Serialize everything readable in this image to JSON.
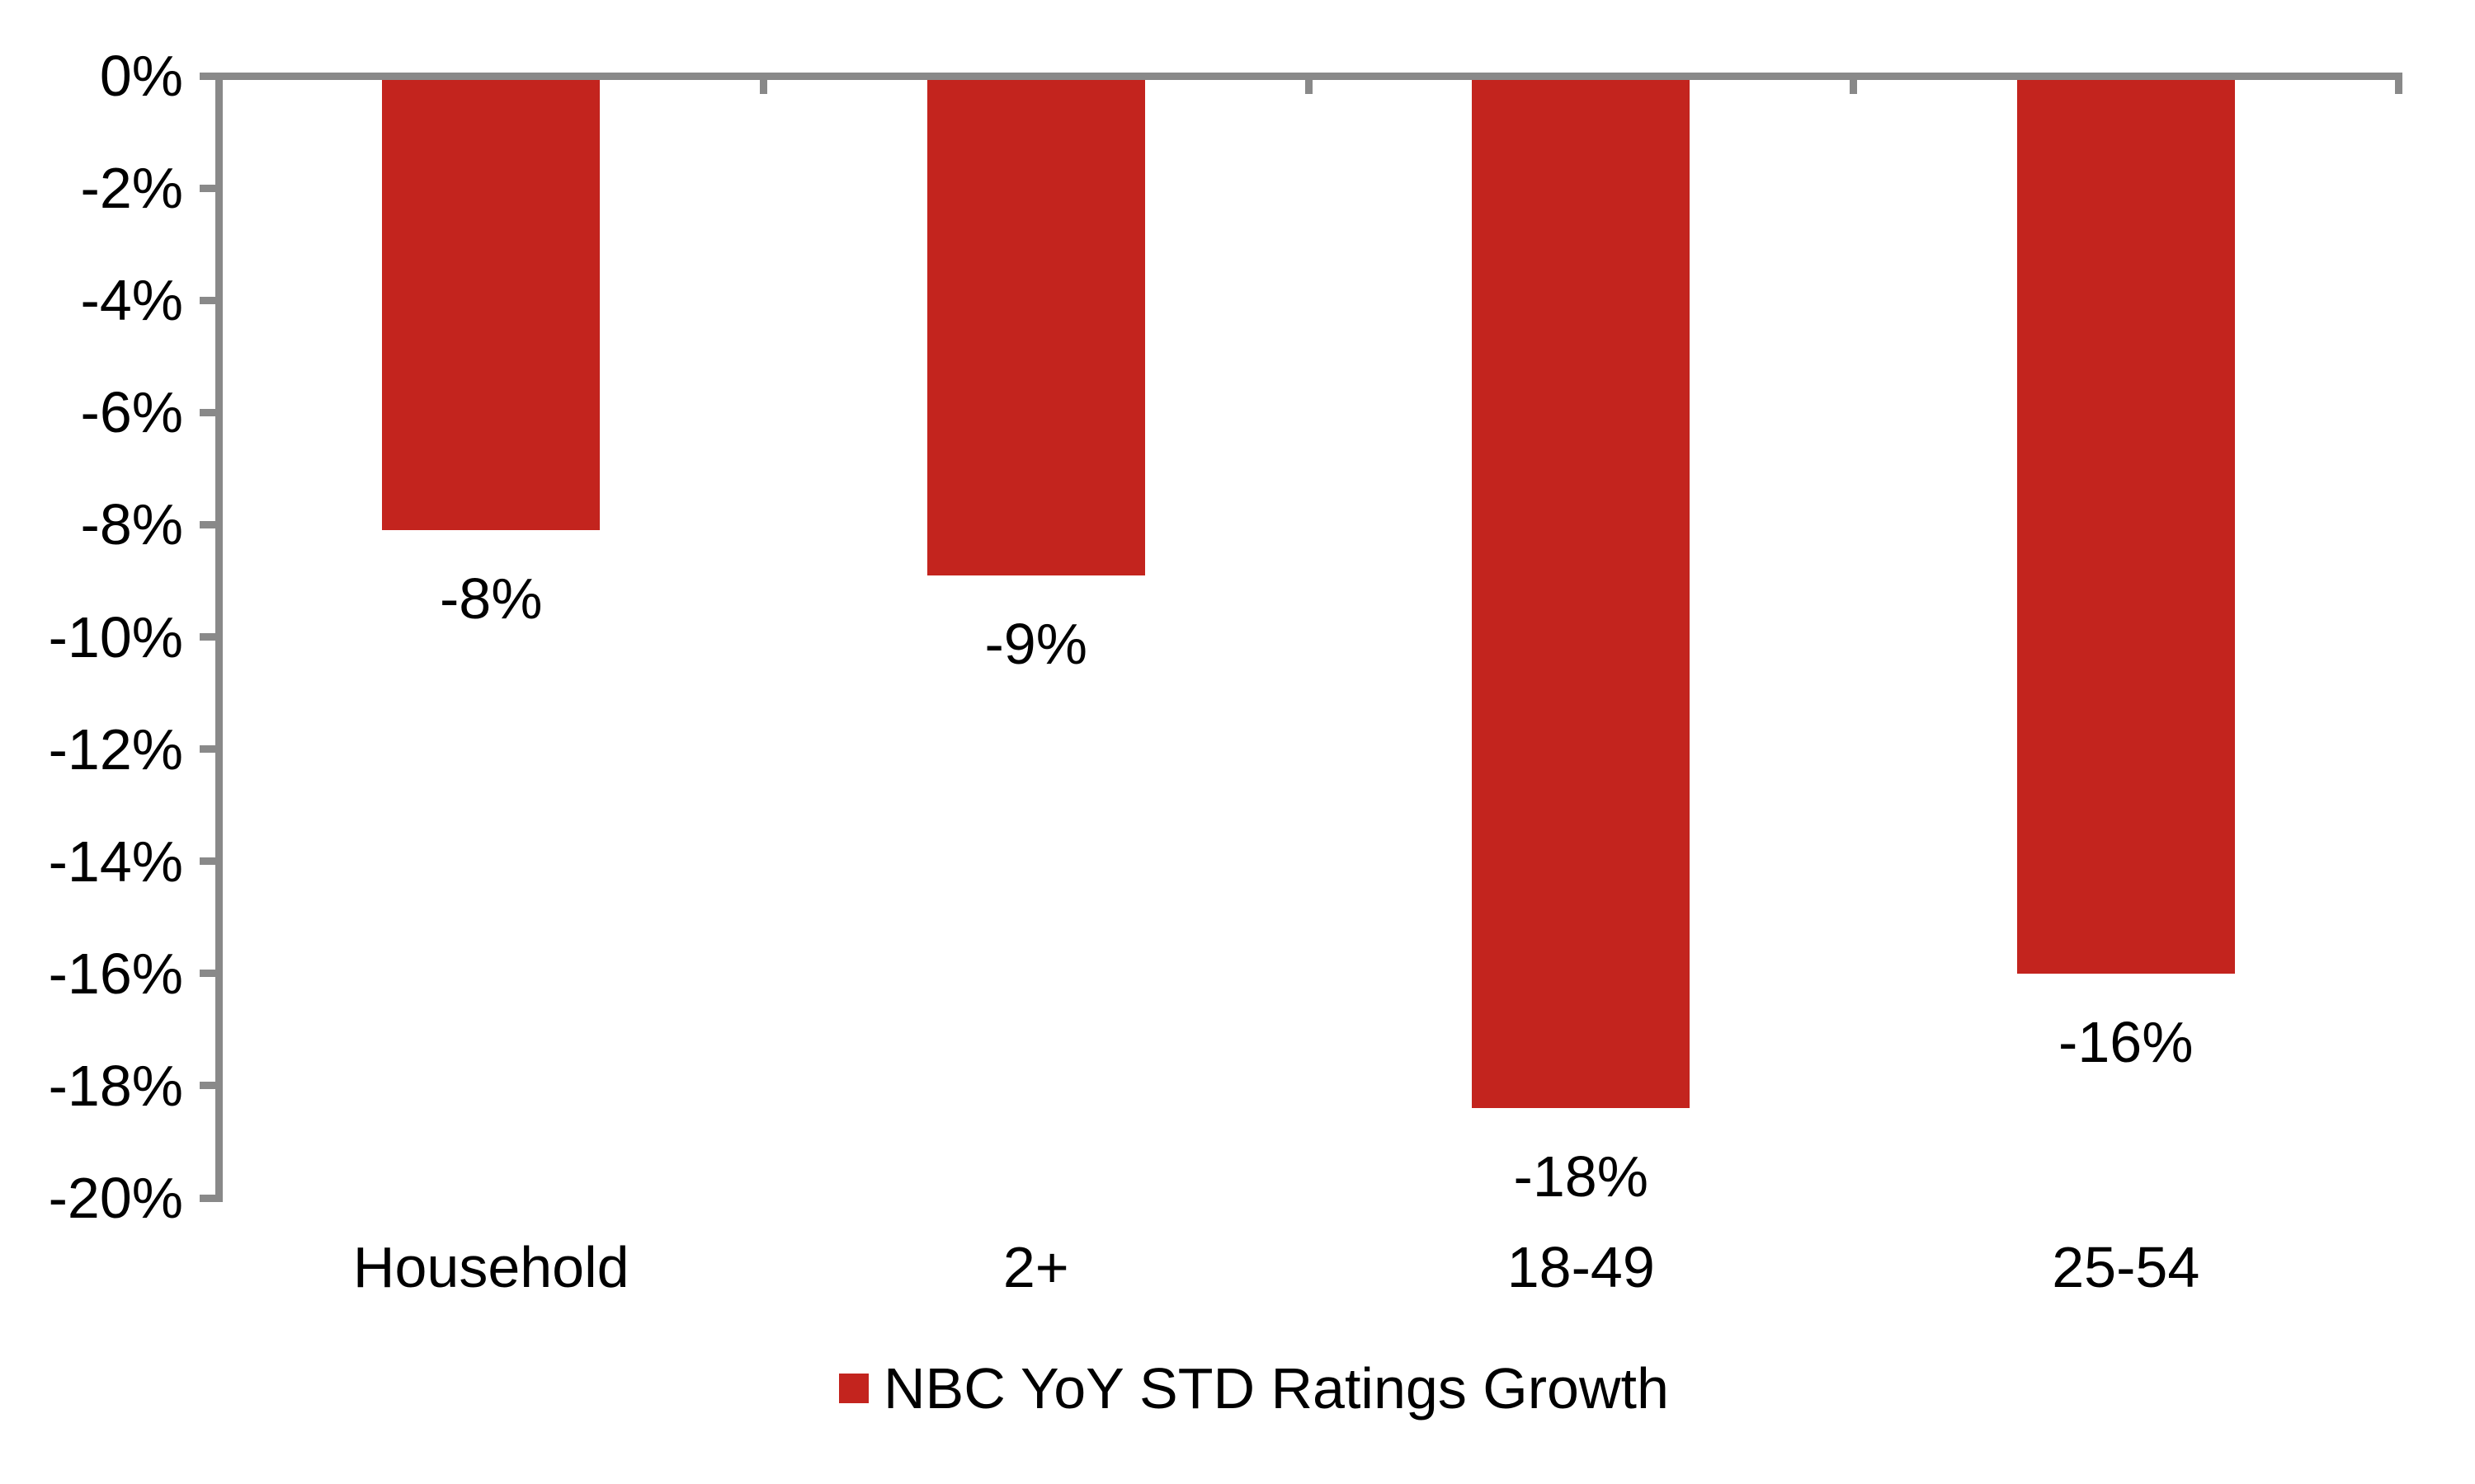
{
  "chart_data": {
    "type": "bar",
    "title": "",
    "xlabel": "",
    "ylabel": "",
    "categories": [
      "Household",
      "2+",
      "18-49",
      "25-54"
    ],
    "series": [
      {
        "name": "NBC YoY STD Ratings Growth",
        "values": [
          -8.1,
          -8.9,
          -18.4,
          -16.0
        ],
        "data_labels": [
          "-8%",
          "-9%",
          "-18%",
          "-16%"
        ]
      }
    ],
    "ylim": [
      -20,
      0
    ],
    "y_tick_step": 2,
    "y_tick_labels": [
      "0%",
      "-2%",
      "-4%",
      "-6%",
      "-8%",
      "-10%",
      "-12%",
      "-14%",
      "-16%",
      "-18%",
      "-20%"
    ],
    "grid": false,
    "legend_position": "bottom",
    "colors": {
      "bar": "#C3241E",
      "axis": "#898989",
      "text": "#000000",
      "background": "#FFFFFF"
    }
  },
  "legend": {
    "label": "NBC YoY STD Ratings Growth"
  }
}
